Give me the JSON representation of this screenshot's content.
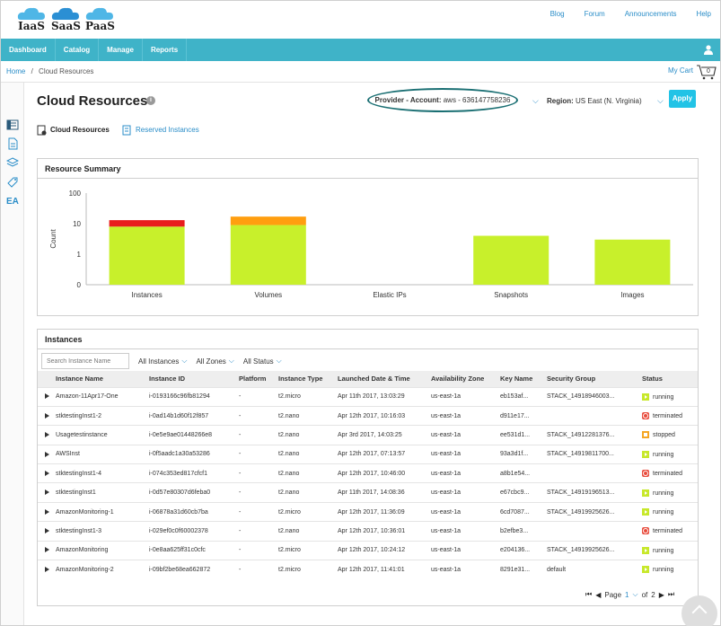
{
  "header": {
    "logos": [
      "IaaS",
      "SaaS",
      "PaaS"
    ],
    "links": [
      "Blog",
      "Forum",
      "Announcements",
      "Help"
    ]
  },
  "nav": {
    "items": [
      "Dashboard",
      "Catalog",
      "Manage",
      "Reports"
    ]
  },
  "breadcrumb": {
    "home": "Home",
    "sep": "/",
    "current": "Cloud Resources"
  },
  "cart": {
    "label": "My Cart",
    "count": "0"
  },
  "page": {
    "title": "Cloud Resources",
    "info_glyph": "i",
    "provider_label": "Provider - Account:",
    "provider_value": "aws - 636147758236",
    "region_label": "Region:",
    "region_value": "US East (N. Virginia)",
    "apply": "Apply"
  },
  "tabs": {
    "active": "Cloud Resources",
    "other": "Reserved Instances"
  },
  "rail": {
    "ea": "EA"
  },
  "summary": {
    "title": "Resource Summary"
  },
  "chart_data": {
    "type": "bar",
    "title": "",
    "ylabel": "Count",
    "scale": "log",
    "yticks": [
      "100",
      "10",
      "1",
      "0"
    ],
    "categories": [
      "Instances",
      "Volumes",
      "Elastic IPs",
      "Snapshots",
      "Images"
    ],
    "series": [
      {
        "name": "",
        "color": "#c8f02b",
        "values": [
          8,
          9,
          0,
          4,
          3
        ]
      },
      {
        "name": "",
        "color": "#e81d1d",
        "values": [
          5,
          0,
          0,
          0,
          0
        ]
      },
      {
        "name": "",
        "color": "#ff9e0f",
        "values": [
          0,
          8,
          0,
          0,
          0
        ]
      }
    ]
  },
  "instances": {
    "title": "Instances",
    "search_placeholder": "Search Instance Name",
    "filters": [
      "All Instances",
      "All Zones",
      "All Status"
    ],
    "columns": [
      "Instance Name",
      "Instance ID",
      "Platform",
      "Instance Type",
      "Launched Date & Time",
      "Availability Zone",
      "Key Name",
      "Security Group",
      "Status"
    ],
    "rows": [
      [
        "Amazon-11Apr17-One",
        "i-0193166c96fb81294",
        "-",
        "t2.micro",
        "Apr 11th 2017, 13:03:29",
        "us-east-1a",
        "eb153af...",
        "STACK_14918946003...",
        "running"
      ],
      [
        "stktestingInst1-2",
        "i-0ad14b1d60f12f857",
        "-",
        "t2.nano",
        "Apr 12th 2017, 10:16:03",
        "us-east-1a",
        "d911e17...",
        "",
        "terminated"
      ],
      [
        "Usagetestinstance",
        "i-0e5e9ae01448266e8",
        "-",
        "t2.nano",
        "Apr 3rd 2017, 14:03:25",
        "us-east-1a",
        "ee531d1...",
        "STACK_14912281376...",
        "stopped"
      ],
      [
        "AWSInst",
        "i-0f5aadc1a30a53286",
        "-",
        "t2.nano",
        "Apr 12th 2017, 07:13:57",
        "us-east-1a",
        "93a3d1f...",
        "STACK_14919811700...",
        "running"
      ],
      [
        "stktestingInst1-4",
        "i-074c353ed817cfcf1",
        "-",
        "t2.nano",
        "Apr 12th 2017, 10:46:00",
        "us-east-1a",
        "a8b1e54...",
        "",
        "terminated"
      ],
      [
        "stktestingInst1",
        "i-0d57e80307d6feba0",
        "-",
        "t2.nano",
        "Apr 11th 2017, 14:08:36",
        "us-east-1a",
        "e67cbc9...",
        "STACK_14919196513...",
        "running"
      ],
      [
        "AmazonMonitoring-1",
        "i-06878a31d60cb7ba",
        "-",
        "t2.micro",
        "Apr 12th 2017, 11:36:09",
        "us-east-1a",
        "6cd7087...",
        "STACK_14919925626...",
        "running"
      ],
      [
        "stktestingInst1-3",
        "i-029ef0c0f60002378",
        "-",
        "t2.nano",
        "Apr 12th 2017, 10:36:01",
        "us-east-1a",
        "b2efbe3...",
        "",
        "terminated"
      ],
      [
        "AmazonMonitoring",
        "i-0e8aa625ff31c0cfc",
        "-",
        "t2.micro",
        "Apr 12th 2017, 10:24:12",
        "us-east-1a",
        "e204136...",
        "STACK_14919925626...",
        "running"
      ],
      [
        "AmazonMonitoring-2",
        "i-09bf2be68ea662872",
        "-",
        "t2.micro",
        "Apr 12th 2017, 11:41:01",
        "us-east-1a",
        "8291e31...",
        "default",
        "running"
      ]
    ],
    "pager": {
      "page_label": "Page",
      "page": "1",
      "of_label": "of",
      "total": "2"
    }
  }
}
